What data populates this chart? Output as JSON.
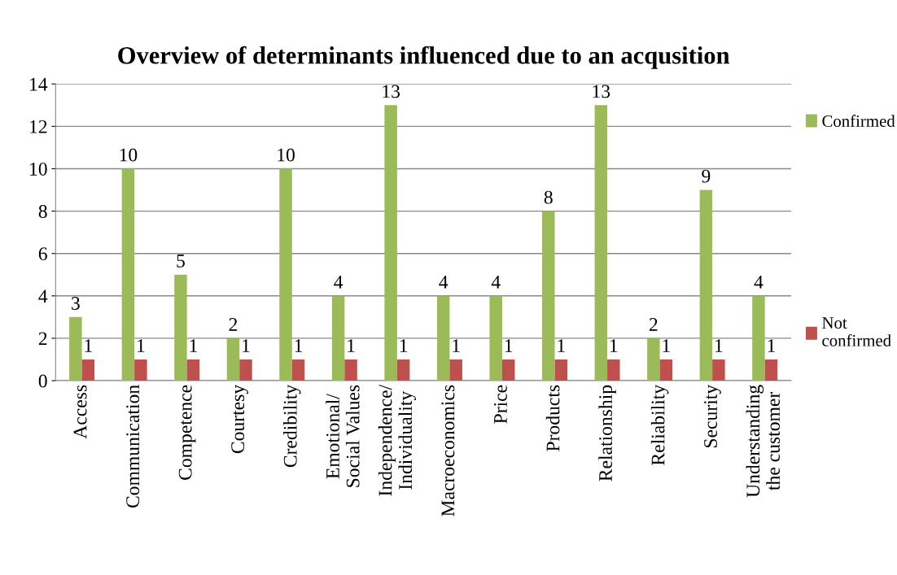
{
  "chart_data": {
    "type": "bar",
    "title": "Overview of determinants influenced due to an acqusition",
    "categories": [
      "Access",
      "Communication",
      "Competence",
      "Courtesy",
      "Credibility",
      "Emotional/\nSocial Values",
      "Independence/\nIndividuality",
      "Macroeconomics",
      "Price",
      "Products",
      "Relationship",
      "Reliability",
      "Security",
      "Understanding\nthe customer"
    ],
    "series": [
      {
        "name": "Confirmed",
        "color": "#9bbb59",
        "values": [
          3,
          10,
          5,
          2,
          10,
          4,
          13,
          4,
          4,
          8,
          13,
          2,
          9,
          4
        ]
      },
      {
        "name": "Not confirmed",
        "color": "#c0504d",
        "values": [
          1,
          1,
          1,
          1,
          1,
          1,
          1,
          1,
          1,
          1,
          1,
          1,
          1,
          1
        ]
      }
    ],
    "ylim": [
      0,
      14
    ],
    "yticks": [
      0,
      2,
      4,
      6,
      8,
      10,
      12,
      14
    ],
    "grid": "y",
    "legend": "right",
    "data_labels": true
  }
}
